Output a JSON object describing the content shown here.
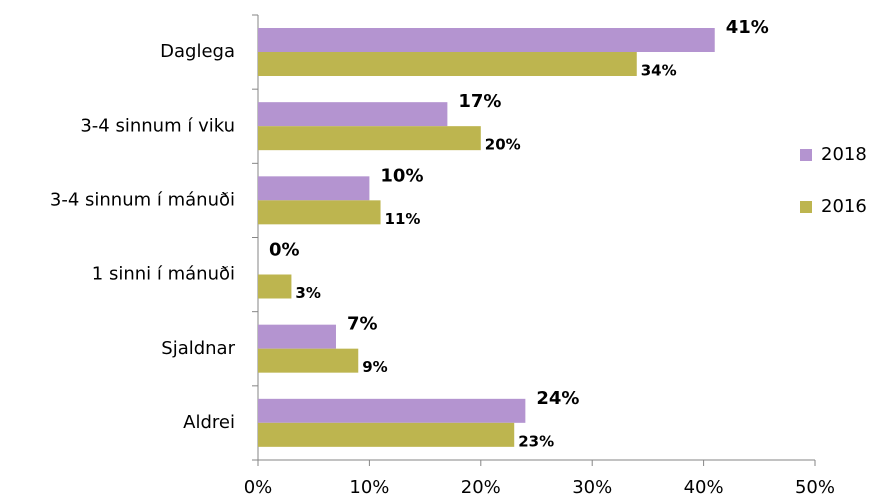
{
  "chart_data": {
    "type": "hbar",
    "categories": [
      "Daglega",
      "3-4 sinnum í viku",
      "3-4 sinnum í mánuði",
      "1 sinni í mánuði",
      "Sjaldnar",
      "Aldrei"
    ],
    "series": [
      {
        "name": "2018",
        "color": "#b494d0",
        "values": [
          41,
          17,
          10,
          0,
          7,
          24
        ],
        "value_labels": [
          "41%",
          "17%",
          "10%",
          "0%",
          "7%",
          "24%"
        ]
      },
      {
        "name": "2016",
        "color": "#bdb54f",
        "values": [
          34,
          20,
          11,
          3,
          9,
          23
        ],
        "value_labels": [
          "34%",
          "20%",
          "11%",
          "3%",
          "9%",
          "23%"
        ]
      }
    ],
    "xlim": [
      0,
      50
    ],
    "xticks": [
      {
        "value": 0,
        "label": "0%"
      },
      {
        "value": 10,
        "label": "10%"
      },
      {
        "value": 20,
        "label": "20%"
      },
      {
        "value": 30,
        "label": "30%"
      },
      {
        "value": 40,
        "label": "40%"
      },
      {
        "value": 50,
        "label": "50%"
      }
    ],
    "grid": false,
    "legend": "right"
  }
}
